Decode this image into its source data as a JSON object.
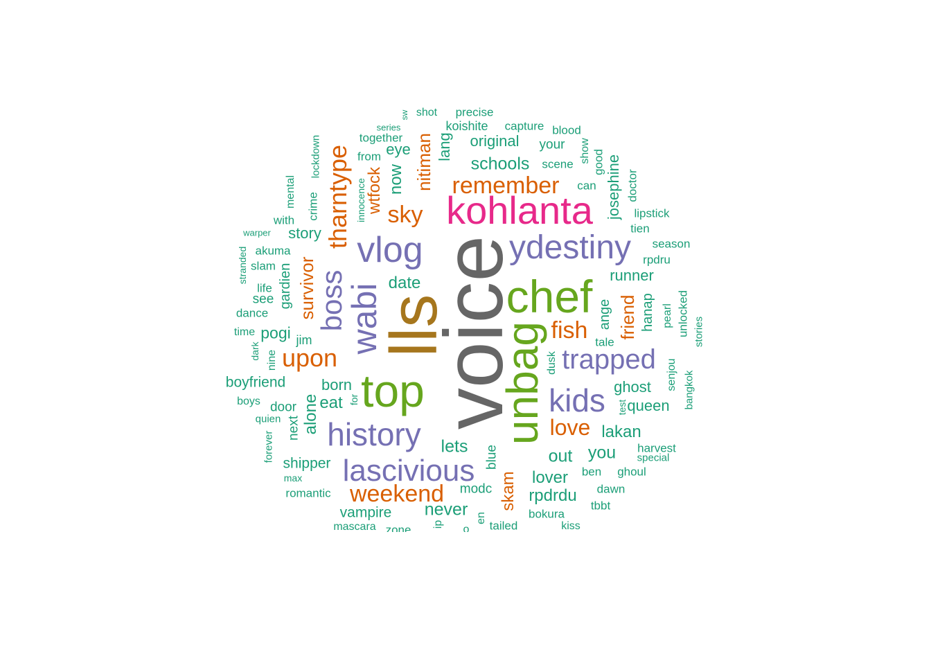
{
  "palette": {
    "teal": "#1b9e77",
    "orange": "#d95f02",
    "purple": "#7570b3",
    "pink": "#e7298a",
    "green": "#66a61e",
    "gold": "#a6761d",
    "gray": "#666666"
  },
  "words": [
    {
      "text": "voice",
      "color": "gray",
      "weight": 100
    },
    {
      "text": "lls",
      "color": "gold",
      "weight": 78
    },
    {
      "text": "top",
      "color": "green",
      "weight": 58
    },
    {
      "text": "unbag",
      "color": "green",
      "weight": 56
    },
    {
      "text": "chef",
      "color": "green",
      "weight": 56
    },
    {
      "text": "kohlanta",
      "color": "pink",
      "weight": 50
    },
    {
      "text": "wabi",
      "color": "purple",
      "weight": 48
    },
    {
      "text": "vlog",
      "color": "purple",
      "weight": 44
    },
    {
      "text": "ydestiny",
      "color": "purple",
      "weight": 40
    },
    {
      "text": "history",
      "color": "purple",
      "weight": 40
    },
    {
      "text": "lascivious",
      "color": "purple",
      "weight": 40
    },
    {
      "text": "kids",
      "color": "purple",
      "weight": 38
    },
    {
      "text": "boss",
      "color": "purple",
      "weight": 38
    },
    {
      "text": "trapped",
      "color": "purple",
      "weight": 34
    },
    {
      "text": "tharntype",
      "color": "orange",
      "weight": 32
    },
    {
      "text": "upon",
      "color": "orange",
      "weight": 30
    },
    {
      "text": "weekend",
      "color": "orange",
      "weight": 30
    },
    {
      "text": "remember",
      "color": "orange",
      "weight": 30
    },
    {
      "text": "sky",
      "color": "orange",
      "weight": 30
    },
    {
      "text": "fish",
      "color": "orange",
      "weight": 30
    },
    {
      "text": "love",
      "color": "orange",
      "weight": 28
    },
    {
      "text": "survivor",
      "color": "orange",
      "weight": 24
    },
    {
      "text": "nitiman",
      "color": "orange",
      "weight": 24
    },
    {
      "text": "friend",
      "color": "orange",
      "weight": 24
    },
    {
      "text": "wtfock",
      "color": "orange",
      "weight": 22
    },
    {
      "text": "skam",
      "color": "orange",
      "weight": 22
    },
    {
      "text": "schools",
      "color": "teal",
      "weight": 22
    },
    {
      "text": "date",
      "color": "teal",
      "weight": 22
    },
    {
      "text": "original",
      "color": "teal",
      "weight": 20
    },
    {
      "text": "story",
      "color": "teal",
      "weight": 20
    },
    {
      "text": "runner",
      "color": "teal",
      "weight": 20
    },
    {
      "text": "ghost",
      "color": "teal",
      "weight": 20
    },
    {
      "text": "queen",
      "color": "teal",
      "weight": 20
    },
    {
      "text": "lakan",
      "color": "teal",
      "weight": 20
    },
    {
      "text": "born",
      "color": "teal",
      "weight": 20
    },
    {
      "text": "eat",
      "color": "teal",
      "weight": 20
    },
    {
      "text": "alone",
      "color": "teal",
      "weight": 20
    },
    {
      "text": "boyfriend",
      "color": "teal",
      "weight": 20
    },
    {
      "text": "pogi",
      "color": "teal",
      "weight": 20
    },
    {
      "text": "lets",
      "color": "teal",
      "weight": 22
    },
    {
      "text": "out",
      "color": "teal",
      "weight": 22
    },
    {
      "text": "you",
      "color": "teal",
      "weight": 22
    },
    {
      "text": "lover",
      "color": "teal",
      "weight": 22
    },
    {
      "text": "rpdrdu",
      "color": "teal",
      "weight": 22
    },
    {
      "text": "never",
      "color": "teal",
      "weight": 22
    },
    {
      "text": "vampire",
      "color": "teal",
      "weight": 20
    },
    {
      "text": "shipper",
      "color": "teal",
      "weight": 20
    },
    {
      "text": "now",
      "color": "teal",
      "weight": 22
    },
    {
      "text": "eye",
      "color": "teal",
      "weight": 20
    },
    {
      "text": "lang",
      "color": "teal",
      "weight": 20
    },
    {
      "text": "josephine",
      "color": "teal",
      "weight": 20
    },
    {
      "text": "gardien",
      "color": "teal",
      "weight": 20
    },
    {
      "text": "hanap",
      "color": "teal",
      "weight": 20
    },
    {
      "text": "ange",
      "color": "teal",
      "weight": 20
    },
    {
      "text": "next",
      "color": "teal",
      "weight": 18
    },
    {
      "text": "blue",
      "color": "teal",
      "weight": 18
    },
    {
      "text": "modc",
      "color": "teal",
      "weight": 18
    },
    {
      "text": "romantic",
      "color": "teal",
      "weight": 16
    },
    {
      "text": "bokura",
      "color": "teal",
      "weight": 16
    },
    {
      "text": "dawn",
      "color": "teal",
      "weight": 16
    },
    {
      "text": "ghoul",
      "color": "teal",
      "weight": 16
    },
    {
      "text": "ben",
      "color": "teal",
      "weight": 16
    },
    {
      "text": "tbbt",
      "color": "teal",
      "weight": 16
    },
    {
      "text": "harvest",
      "color": "teal",
      "weight": 16
    },
    {
      "text": "special",
      "color": "teal",
      "weight": 14
    },
    {
      "text": "tale",
      "color": "teal",
      "weight": 16
    },
    {
      "text": "test",
      "color": "teal",
      "weight": 14
    },
    {
      "text": "dusk",
      "color": "teal",
      "weight": 16
    },
    {
      "text": "senjou",
      "color": "teal",
      "weight": 16
    },
    {
      "text": "bangkok",
      "color": "teal",
      "weight": 14
    },
    {
      "text": "pearl",
      "color": "teal",
      "weight": 16
    },
    {
      "text": "unlocked",
      "color": "teal",
      "weight": 16
    },
    {
      "text": "stories",
      "color": "teal",
      "weight": 14
    },
    {
      "text": "rpdru",
      "color": "teal",
      "weight": 16
    },
    {
      "text": "season",
      "color": "teal",
      "weight": 16
    },
    {
      "text": "tien",
      "color": "teal",
      "weight": 16
    },
    {
      "text": "lipstick",
      "color": "teal",
      "weight": 16
    },
    {
      "text": "doctor",
      "color": "teal",
      "weight": 16
    },
    {
      "text": "can",
      "color": "teal",
      "weight": 16
    },
    {
      "text": "scene",
      "color": "teal",
      "weight": 16
    },
    {
      "text": "good",
      "color": "teal",
      "weight": 16
    },
    {
      "text": "show",
      "color": "teal",
      "weight": 16
    },
    {
      "text": "your",
      "color": "teal",
      "weight": 18
    },
    {
      "text": "blood",
      "color": "teal",
      "weight": 16
    },
    {
      "text": "capture",
      "color": "teal",
      "weight": 16
    },
    {
      "text": "koishite",
      "color": "teal",
      "weight": 18
    },
    {
      "text": "precise",
      "color": "teal",
      "weight": 16
    },
    {
      "text": "shot",
      "color": "teal",
      "weight": 16
    },
    {
      "text": "sw",
      "color": "teal",
      "weight": 12
    },
    {
      "text": "series",
      "color": "teal",
      "weight": 13
    },
    {
      "text": "together",
      "color": "teal",
      "weight": 16
    },
    {
      "text": "from",
      "color": "teal",
      "weight": 16
    },
    {
      "text": "innocence",
      "color": "teal",
      "weight": 14
    },
    {
      "text": "lockdown",
      "color": "teal",
      "weight": 14
    },
    {
      "text": "crime",
      "color": "teal",
      "weight": 16
    },
    {
      "text": "mental",
      "color": "teal",
      "weight": 16
    },
    {
      "text": "with",
      "color": "teal",
      "weight": 16
    },
    {
      "text": "warper",
      "color": "teal",
      "weight": 13
    },
    {
      "text": "akuma",
      "color": "teal",
      "weight": 16
    },
    {
      "text": "slam",
      "color": "teal",
      "weight": 16
    },
    {
      "text": "stranded",
      "color": "teal",
      "weight": 14
    },
    {
      "text": "life",
      "color": "teal",
      "weight": 16
    },
    {
      "text": "see",
      "color": "teal",
      "weight": 18
    },
    {
      "text": "dance",
      "color": "teal",
      "weight": 16
    },
    {
      "text": "time",
      "color": "teal",
      "weight": 16
    },
    {
      "text": "dark",
      "color": "teal",
      "weight": 14
    },
    {
      "text": "nine",
      "color": "teal",
      "weight": 16
    },
    {
      "text": "jim",
      "color": "teal",
      "weight": 18
    },
    {
      "text": "boys",
      "color": "teal",
      "weight": 16
    },
    {
      "text": "door",
      "color": "teal",
      "weight": 18
    },
    {
      "text": "quien",
      "color": "teal",
      "weight": 14
    },
    {
      "text": "forever",
      "color": "teal",
      "weight": 14
    },
    {
      "text": "max",
      "color": "teal",
      "weight": 13
    },
    {
      "text": "for",
      "color": "teal",
      "weight": 14
    },
    {
      "text": "mascara",
      "color": "teal",
      "weight": 16
    },
    {
      "text": "zone",
      "color": "teal",
      "weight": 16
    },
    {
      "text": "tailed",
      "color": "teal",
      "weight": 16
    },
    {
      "text": "kiss",
      "color": "teal",
      "weight": 16
    },
    {
      "text": "ip",
      "color": "teal",
      "weight": 16
    },
    {
      "text": "o",
      "color": "teal",
      "weight": 16
    },
    {
      "text": "en",
      "color": "teal",
      "weight": 16
    }
  ]
}
